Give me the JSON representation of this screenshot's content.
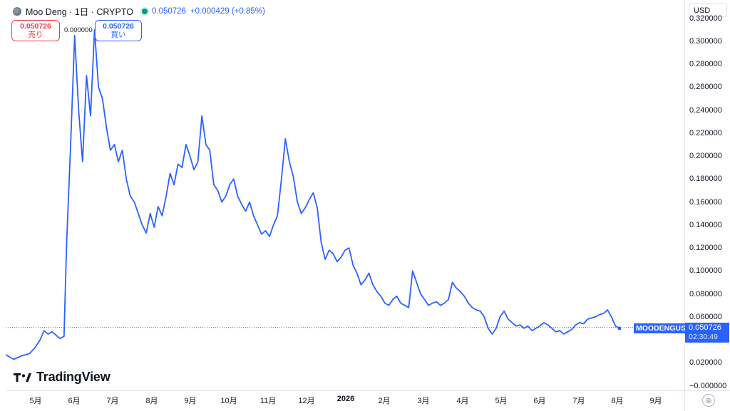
{
  "legend": {
    "symbol_icon": "coin-icon",
    "title": "Moo Deng · 1日 · CRYPTO",
    "price": "0.050726",
    "change": "+0.000429 (+0.85%)",
    "status_color": "#089981"
  },
  "trade": {
    "sell_price": "0.050726",
    "sell_label": "売り",
    "spread": "0.000000",
    "buy_price": "0.050726",
    "buy_label": "買い"
  },
  "currency": "USD",
  "series_label": "MOODENGUSD",
  "last_price": "0.050726",
  "countdown": "02:30:49",
  "branding": "TradingView",
  "colors": {
    "line": "#2962ff",
    "sell": "#f23645",
    "buy": "#2962ff"
  },
  "chart_data": {
    "type": "line",
    "y_ticks": [
      "0.320000",
      "0.300000",
      "0.280000",
      "0.260000",
      "0.240000",
      "0.220000",
      "0.200000",
      "0.180000",
      "0.160000",
      "0.140000",
      "0.120000",
      "0.100000",
      "0.080000",
      "0.060000",
      "0.020000",
      "−0.000000"
    ],
    "x_ticks": [
      "5月",
      "6月",
      "7月",
      "8月",
      "9月",
      "10月",
      "11月",
      "12月",
      "2026",
      "2月",
      "3月",
      "4月",
      "5月",
      "6月",
      "7月",
      "8月",
      "9月"
    ],
    "series": [
      {
        "values": [
          [
            0,
            0.027
          ],
          [
            6,
            0.023
          ],
          [
            12,
            0.026
          ],
          [
            18,
            0.028
          ],
          [
            22,
            0.033
          ],
          [
            26,
            0.04
          ],
          [
            29,
            0.048
          ],
          [
            32,
            0.045
          ],
          [
            35,
            0.047
          ],
          [
            38,
            0.044
          ],
          [
            41,
            0.041
          ],
          [
            44,
            0.043
          ],
          [
            46,
            0.125
          ],
          [
            49,
            0.21
          ],
          [
            52,
            0.305
          ],
          [
            55,
            0.24
          ],
          [
            58,
            0.195
          ],
          [
            61,
            0.27
          ],
          [
            64,
            0.235
          ],
          [
            67,
            0.31
          ],
          [
            70,
            0.26
          ],
          [
            73,
            0.25
          ],
          [
            76,
            0.225
          ],
          [
            79,
            0.205
          ],
          [
            82,
            0.21
          ],
          [
            85,
            0.195
          ],
          [
            88,
            0.205
          ],
          [
            91,
            0.18
          ],
          [
            94,
            0.165
          ],
          [
            97,
            0.16
          ],
          [
            100,
            0.15
          ],
          [
            103,
            0.14
          ],
          [
            106,
            0.133
          ],
          [
            109,
            0.15
          ],
          [
            112,
            0.138
          ],
          [
            115,
            0.156
          ],
          [
            118,
            0.148
          ],
          [
            121,
            0.165
          ],
          [
            124,
            0.185
          ],
          [
            127,
            0.175
          ],
          [
            130,
            0.193
          ],
          [
            133,
            0.19
          ],
          [
            136,
            0.21
          ],
          [
            139,
            0.2
          ],
          [
            142,
            0.188
          ],
          [
            145,
            0.195
          ],
          [
            148,
            0.235
          ],
          [
            151,
            0.21
          ],
          [
            154,
            0.205
          ],
          [
            157,
            0.175
          ],
          [
            160,
            0.17
          ],
          [
            163,
            0.16
          ],
          [
            166,
            0.165
          ],
          [
            169,
            0.175
          ],
          [
            172,
            0.18
          ],
          [
            175,
            0.165
          ],
          [
            178,
            0.158
          ],
          [
            181,
            0.152
          ],
          [
            184,
            0.16
          ],
          [
            187,
            0.148
          ],
          [
            190,
            0.14
          ],
          [
            193,
            0.132
          ],
          [
            196,
            0.135
          ],
          [
            199,
            0.13
          ],
          [
            202,
            0.14
          ],
          [
            205,
            0.148
          ],
          [
            208,
            0.18
          ],
          [
            211,
            0.215
          ],
          [
            214,
            0.195
          ],
          [
            217,
            0.182
          ],
          [
            220,
            0.16
          ],
          [
            223,
            0.15
          ],
          [
            226,
            0.155
          ],
          [
            229,
            0.162
          ],
          [
            232,
            0.168
          ],
          [
            235,
            0.155
          ],
          [
            238,
            0.125
          ],
          [
            241,
            0.11
          ],
          [
            244,
            0.118
          ],
          [
            247,
            0.115
          ],
          [
            250,
            0.108
          ],
          [
            253,
            0.112
          ],
          [
            256,
            0.118
          ],
          [
            259,
            0.12
          ],
          [
            262,
            0.105
          ],
          [
            265,
            0.098
          ],
          [
            268,
            0.088
          ],
          [
            271,
            0.092
          ],
          [
            274,
            0.098
          ],
          [
            277,
            0.088
          ],
          [
            280,
            0.082
          ],
          [
            283,
            0.078
          ],
          [
            286,
            0.072
          ],
          [
            289,
            0.07
          ],
          [
            292,
            0.075
          ],
          [
            295,
            0.078
          ],
          [
            298,
            0.072
          ],
          [
            301,
            0.07
          ],
          [
            304,
            0.068
          ],
          [
            307,
            0.1
          ],
          [
            310,
            0.09
          ],
          [
            313,
            0.08
          ],
          [
            316,
            0.075
          ],
          [
            319,
            0.07
          ],
          [
            322,
            0.072
          ],
          [
            325,
            0.073
          ],
          [
            328,
            0.07
          ],
          [
            331,
            0.072
          ],
          [
            334,
            0.075
          ],
          [
            337,
            0.09
          ],
          [
            340,
            0.085
          ],
          [
            343,
            0.082
          ],
          [
            346,
            0.078
          ],
          [
            349,
            0.072
          ],
          [
            352,
            0.068
          ],
          [
            355,
            0.066
          ],
          [
            358,
            0.065
          ],
          [
            361,
            0.06
          ],
          [
            364,
            0.05
          ],
          [
            367,
            0.045
          ],
          [
            370,
            0.05
          ],
          [
            373,
            0.06
          ],
          [
            376,
            0.065
          ],
          [
            379,
            0.058
          ],
          [
            382,
            0.055
          ],
          [
            385,
            0.052
          ],
          [
            388,
            0.053
          ],
          [
            391,
            0.05
          ],
          [
            394,
            0.052
          ],
          [
            397,
            0.048
          ],
          [
            400,
            0.05
          ],
          [
            403,
            0.052
          ],
          [
            406,
            0.055
          ],
          [
            409,
            0.053
          ],
          [
            412,
            0.05
          ],
          [
            415,
            0.047
          ],
          [
            418,
            0.048
          ],
          [
            421,
            0.045
          ],
          [
            424,
            0.047
          ],
          [
            427,
            0.049
          ],
          [
            430,
            0.053
          ],
          [
            433,
            0.055
          ],
          [
            436,
            0.054
          ],
          [
            439,
            0.058
          ],
          [
            442,
            0.059
          ],
          [
            445,
            0.06
          ],
          [
            448,
            0.062
          ],
          [
            451,
            0.063
          ],
          [
            454,
            0.066
          ],
          [
            457,
            0.06
          ],
          [
            460,
            0.052
          ],
          [
            463,
            0.05
          ]
        ]
      }
    ],
    "x_domain": [
      0,
      512
    ],
    "ylim": [
      -0.004,
      0.334
    ],
    "legend": "none",
    "grid": false
  }
}
